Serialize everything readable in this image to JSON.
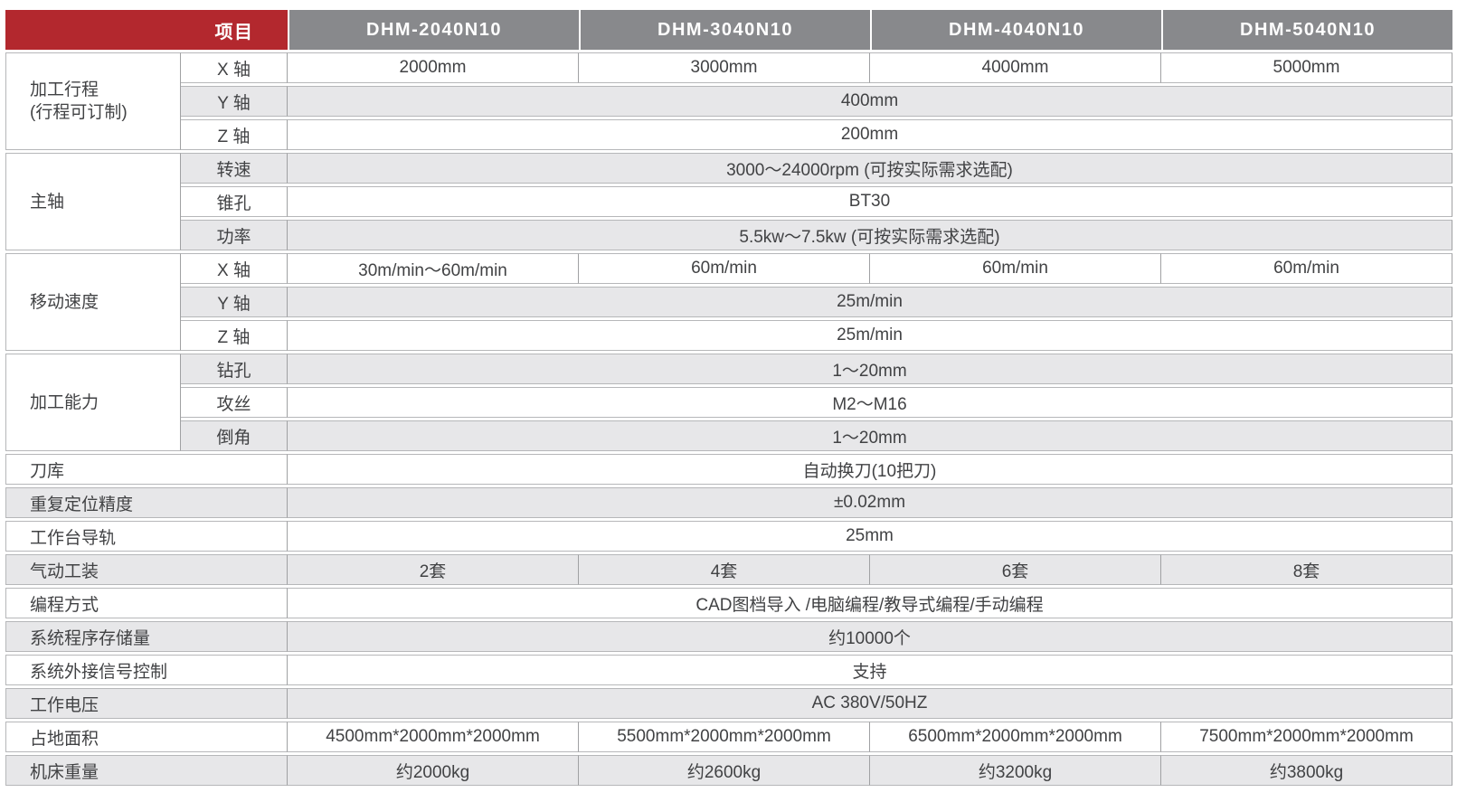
{
  "colors": {
    "accent_red": "#b3282e",
    "header_gray": "#88898c",
    "row_alt_gray": "#e7e7e9",
    "hairline": "#b6b7b9",
    "divider": "#a0a1a3",
    "text": "#414244",
    "header_text": "#ffffff"
  },
  "table": {
    "header": {
      "item_label": "项目",
      "models": [
        "DHM-2040N10",
        "DHM-3040N10",
        "DHM-4040N10",
        "DHM-5040N10"
      ]
    },
    "sections": [
      {
        "label": "加工行程\n(行程可订制)",
        "rows": [
          {
            "sub": "X 轴",
            "values": [
              "2000mm",
              "3000mm",
              "4000mm",
              "5000mm"
            ]
          },
          {
            "sub": "Y 轴",
            "span": "400mm"
          },
          {
            "sub": "Z 轴",
            "span": "200mm"
          }
        ]
      },
      {
        "label": "主轴",
        "rows": [
          {
            "sub": "转速",
            "span": "3000～24000rpm (可按实际需求选配)"
          },
          {
            "sub": "锥孔",
            "span": "BT30"
          },
          {
            "sub": "功率",
            "span": "5.5kw～7.5kw (可按实际需求选配)"
          }
        ]
      },
      {
        "label": "移动速度",
        "rows": [
          {
            "sub": "X 轴",
            "values": [
              "30m/min～60m/min",
              "60m/min",
              "60m/min",
              "60m/min"
            ]
          },
          {
            "sub": "Y 轴",
            "span": "25m/min"
          },
          {
            "sub": "Z 轴",
            "span": "25m/min"
          }
        ]
      },
      {
        "label": "加工能力",
        "rows": [
          {
            "sub": "钻孔",
            "span": "1～20mm"
          },
          {
            "sub": "攻丝",
            "span": "M2～M16"
          },
          {
            "sub": "倒角",
            "span": "1～20mm"
          }
        ]
      },
      {
        "label": "刀库",
        "span": "自动换刀(10把刀)"
      },
      {
        "label": "重复定位精度",
        "span": "±0.02mm"
      },
      {
        "label": "工作台导轨",
        "span": "25mm"
      },
      {
        "label": "气动工装",
        "values": [
          "2套",
          "4套",
          "6套",
          "8套"
        ]
      },
      {
        "label": "编程方式",
        "span": "CAD图档导入 /电脑编程/教导式编程/手动编程"
      },
      {
        "label": "系统程序存储量",
        "span": "约10000个"
      },
      {
        "label": "系统外接信号控制",
        "span": "支持"
      },
      {
        "label": "工作电压",
        "span": "AC 380V/50HZ"
      },
      {
        "label": "占地面积",
        "values": [
          "4500mm*2000mm*2000mm",
          "5500mm*2000mm*2000mm",
          "6500mm*2000mm*2000mm",
          "7500mm*2000mm*2000mm"
        ]
      },
      {
        "label": "机床重量",
        "values": [
          "约2000kg",
          "约2600kg",
          "约3200kg",
          "约3800kg"
        ]
      }
    ]
  }
}
